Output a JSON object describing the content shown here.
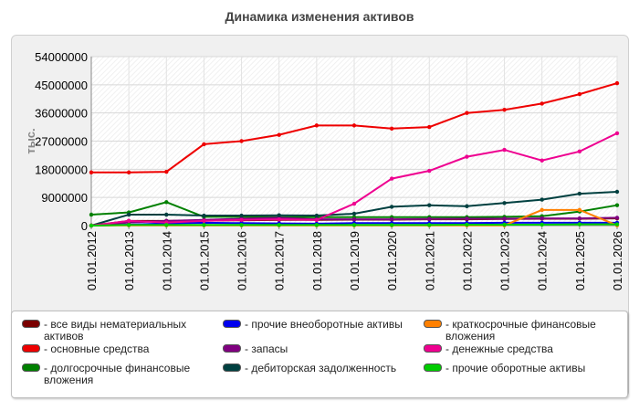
{
  "chart_data": {
    "type": "line",
    "title": "Динамика изменения активов",
    "ylabel": "тыс.",
    "xlabel": "",
    "ylim": [
      0,
      54000000
    ],
    "yticks": [
      0,
      9000000,
      18000000,
      27000000,
      36000000,
      45000000,
      54000000
    ],
    "ytick_labels": [
      "0",
      "9000000",
      "18000000",
      "27000000",
      "36000000",
      "45000000",
      "54000000"
    ],
    "grid": true,
    "legend_position": "bottom",
    "x": [
      "01.01.2012",
      "01.01.2013",
      "01.01.2014",
      "01.01.2015",
      "01.01.2016",
      "01.01.2017",
      "01.01.2018",
      "01.01.2019",
      "01.01.2020",
      "01.01.2021",
      "01.01.2022",
      "01.01.2023",
      "01.01.2024",
      "01.01.2025",
      "01.01.2026"
    ],
    "series": [
      {
        "name": "- все виды нематериальных активов",
        "color": "#7a0000",
        "values": [
          0,
          1500000,
          1500000,
          1600000,
          1700000,
          1800000,
          1800000,
          1900000,
          1900000,
          2000000,
          2000000,
          2100000,
          2200000,
          2200000,
          2300000
        ]
      },
      {
        "name": "- основные средства",
        "color": "#ee0000",
        "values": [
          17000000,
          17000000,
          17200000,
          26000000,
          27000000,
          29000000,
          32000000,
          32000000,
          31000000,
          31500000,
          36000000,
          37000000,
          39000000,
          42000000,
          45500000
        ]
      },
      {
        "name": "- долгосрочные финансовые вложения",
        "color": "#008000",
        "values": [
          3500000,
          4200000,
          7500000,
          2800000,
          2800000,
          2700000,
          2700000,
          2700000,
          2700000,
          2700000,
          2700000,
          2800000,
          3000000,
          4500000,
          6500000
        ]
      },
      {
        "name": "- прочие внеоборотные активы",
        "color": "#0000ee",
        "values": [
          0,
          300000,
          700000,
          900000,
          800000,
          700000,
          600000,
          800000,
          800000,
          800000,
          800000,
          900000,
          900000,
          900000,
          900000
        ]
      },
      {
        "name": "- запасы",
        "color": "#800080",
        "values": [
          0,
          1000000,
          1500000,
          1800000,
          2200000,
          2500000,
          2000000,
          2000000,
          2000000,
          2100000,
          2200000,
          2200000,
          2300000,
          2300000,
          2500000
        ]
      },
      {
        "name": "- дебиторская задолженность",
        "color": "#004040",
        "values": [
          0,
          3500000,
          3500000,
          3200000,
          3200000,
          3300000,
          3200000,
          3800000,
          6000000,
          6500000,
          6200000,
          7200000,
          8300000,
          10200000,
          10800000
        ]
      },
      {
        "name": "- краткосрочные финансовые вложения",
        "color": "#ff8000",
        "values": [
          0,
          100000,
          100000,
          100000,
          100000,
          100000,
          100000,
          100000,
          100000,
          100000,
          100000,
          100000,
          5000000,
          5000000,
          100000
        ]
      },
      {
        "name": "- денежные средства",
        "color": "#ee0090",
        "values": [
          0,
          1500000,
          1000000,
          1500000,
          1800000,
          2000000,
          1800000,
          7000000,
          15000000,
          17500000,
          22000000,
          24200000,
          20800000,
          23700000,
          29500000
        ]
      },
      {
        "name": "- прочие оборотные активы",
        "color": "#00cc00",
        "values": [
          0,
          200000,
          200000,
          200000,
          200000,
          200000,
          200000,
          200000,
          200000,
          200000,
          300000,
          300000,
          300000,
          400000,
          400000
        ]
      }
    ]
  }
}
